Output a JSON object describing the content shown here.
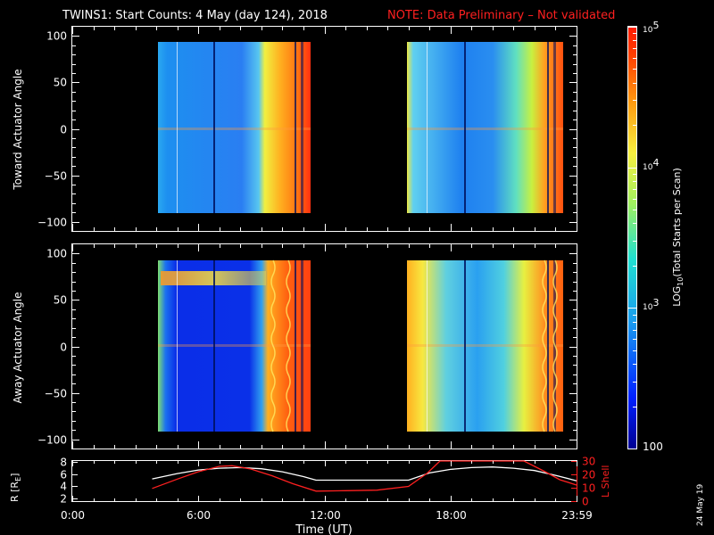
{
  "header": {
    "title": "TWINS1: Start Counts:  4 May (day 124), 2018",
    "note": "NOTE: Data Preliminary – Not validated"
  },
  "footer": {
    "date_stamp": "24 May 19"
  },
  "colors": {
    "background": "#000000",
    "note": "#ff2020",
    "r_line": "#ffffff",
    "lshell_line": "#ff2020"
  },
  "chart_data": [
    {
      "type": "heatmap",
      "panel": "top",
      "xlabel": "",
      "ylabel": "Toward Actuator Angle",
      "ylim": [
        -110,
        110
      ],
      "yticks": [
        "100",
        "50",
        "0",
        "−50",
        "−100"
      ],
      "xlim": [
        0,
        24
      ],
      "data_segments_hours": [
        [
          4.0,
          11.8
        ],
        [
          16.0,
          23.98
        ]
      ],
      "angle_range": [
        -90,
        90
      ],
      "colorbar": {
        "label_main": "LOG",
        "label_sub": "10",
        "label_rest": "(Total Starts per Scan)",
        "scale": "log",
        "range": [
          100,
          100000
        ],
        "tick_labels": [
          {
            "base": "10",
            "exp": "5"
          },
          {
            "base": "10",
            "exp": "4"
          },
          {
            "base": "10",
            "exp": "3"
          },
          {
            "base": "100",
            "exp": ""
          }
        ]
      }
    },
    {
      "type": "heatmap",
      "panel": "middle",
      "xlabel": "",
      "ylabel": "Away Actuator Angle",
      "ylim": [
        -110,
        110
      ],
      "yticks": [
        "100",
        "50",
        "0",
        "−50",
        "−100"
      ],
      "xlim": [
        0,
        24
      ],
      "data_segments_hours": [
        [
          4.0,
          11.8
        ],
        [
          16.0,
          23.98
        ]
      ],
      "angle_range": [
        -90,
        90
      ]
    },
    {
      "type": "line",
      "panel": "bottom",
      "xlabel": "Time (UT)",
      "ylabel_left": "R [R",
      "ylabel_left_sub": "E",
      "ylabel_left_end": "]",
      "ylabel_right": "L Shell",
      "x_tick_labels": [
        "0:00",
        "6:00",
        "12:00",
        "18:00",
        "23:59"
      ],
      "x_tick_hours": [
        0,
        6,
        12,
        18,
        23.98
      ],
      "yticks_left": [
        "8",
        "6",
        "4",
        "2"
      ],
      "yticks_right": [
        "30",
        "20",
        "10",
        "0"
      ],
      "ylim_left": [
        1.5,
        8.2
      ],
      "ylim_right": [
        0,
        30
      ],
      "series": [
        {
          "name": "R",
          "axis": "left",
          "x": [
            3.8,
            5.0,
            6.0,
            7.0,
            8.0,
            9.0,
            10.0,
            11.0,
            11.6,
            13.0,
            14.5,
            16.0,
            17.0,
            18.0,
            19.0,
            20.0,
            21.0,
            22.0,
            23.0,
            24.0
          ],
          "values": [
            5.2,
            6.1,
            6.7,
            7.0,
            7.1,
            6.9,
            6.4,
            5.6,
            5.0,
            5.0,
            5.0,
            5.0,
            6.2,
            6.8,
            7.1,
            7.2,
            7.0,
            6.6,
            5.8,
            4.9
          ]
        },
        {
          "name": "L Shell",
          "axis": "right",
          "x": [
            3.8,
            5.0,
            6.0,
            7.0,
            7.6,
            8.5,
            9.5,
            10.5,
            11.6,
            13.0,
            14.5,
            16.0,
            16.9,
            17.5,
            21.5,
            22.5,
            23.2,
            24.0
          ],
          "values": [
            9.5,
            16.5,
            22.0,
            26.0,
            26.5,
            24.0,
            19.0,
            13.0,
            7.5,
            7.8,
            8.2,
            11.0,
            21.0,
            30.0,
            30.0,
            22.0,
            16.0,
            12.0
          ]
        }
      ]
    }
  ]
}
